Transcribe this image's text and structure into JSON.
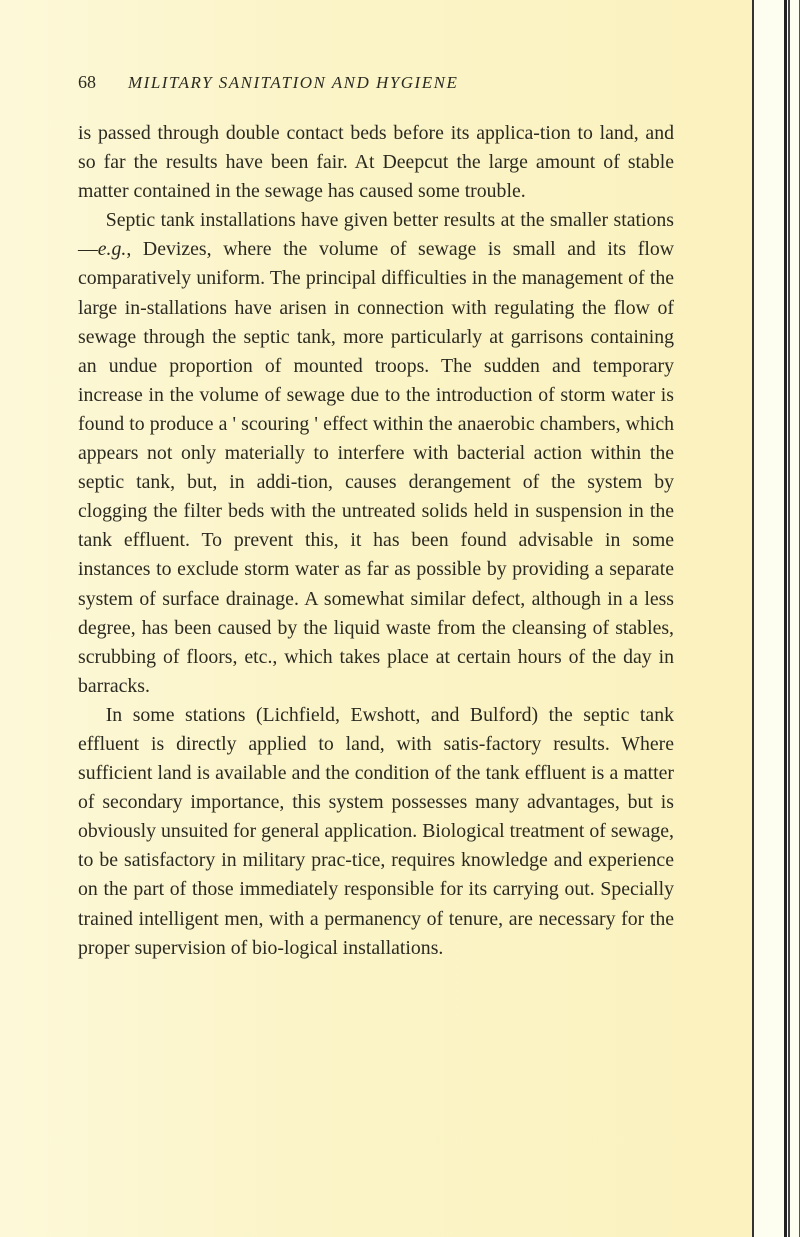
{
  "page": {
    "number": "68",
    "running_title": "MILITARY SANITATION AND HYGIENE"
  },
  "paragraphs": {
    "p1": "is passed through double contact beds before its applica-tion to land, and so far the results have been fair. At Deepcut the large amount of stable matter contained in the sewage has caused some trouble.",
    "p2_a": "Septic tank installations have given better results at the smaller stations—",
    "p2_eg": "e.g.",
    "p2_b": ", Devizes, where the volume of sewage is small and its flow comparatively uniform. The principal difficulties in the management of the large in-stallations have arisen in connection with regulating the flow of sewage through the septic tank, more particularly at garrisons containing an undue proportion of mounted troops. The sudden and temporary increase in the volume of sewage due to the introduction of storm water is found to produce a ' scouring ' effect within the anaerobic chambers, which appears not only materially to interfere with bacterial action within the septic tank, but, in addi-tion, causes derangement of the system by clogging the filter beds with the untreated solids held in suspension in the tank effluent. To prevent this, it has been found advisable in some instances to exclude storm water as far as possible by providing a separate system of surface drainage. A somewhat similar defect, although in a less degree, has been caused by the liquid waste from the cleansing of stables, scrubbing of floors, etc., which takes place at certain hours of the day in barracks.",
    "p3": "In some stations (Lichfield, Ewshott, and Bulford) the septic tank effluent is directly applied to land, with satis-factory results. Where sufficient land is available and the condition of the tank effluent is a matter of secondary importance, this system possesses many advantages, but is obviously unsuited for general application. Biological treatment of sewage, to be satisfactory in military prac-tice, requires knowledge and experience on the part of those immediately responsible for its carrying out. Specially trained intelligent men, with a permanency of tenure, are necessary for the proper supervision of bio-logical installations."
  }
}
